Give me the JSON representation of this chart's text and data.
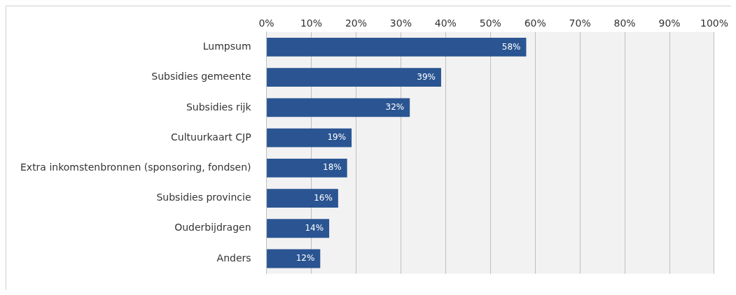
{
  "chart_data": {
    "type": "bar",
    "orientation": "horizontal",
    "categories": [
      "Lumpsum",
      "Subsidies gemeente",
      "Subsidies rijk",
      "Cultuurkaart CJP",
      "Extra inkomstenbronnen (sponsoring, fondsen)",
      "Subsidies provincie",
      "Ouderbijdragen",
      "Anders"
    ],
    "values": [
      58,
      39,
      32,
      19,
      18,
      16,
      14,
      12
    ],
    "value_labels": [
      "58%",
      "39%",
      "32%",
      "19%",
      "18%",
      "16%",
      "14%",
      "12%"
    ],
    "color": "#2a5592",
    "xlim": [
      0,
      100
    ],
    "xticks": [
      {
        "value": 0,
        "label": "0%"
      },
      {
        "value": 10,
        "label": "10%"
      },
      {
        "value": 20,
        "label": "20%"
      },
      {
        "value": 30,
        "label": "30%"
      },
      {
        "value": 40,
        "label": "40%"
      },
      {
        "value": 50,
        "label": "50%"
      },
      {
        "value": 60,
        "label": "60%"
      },
      {
        "value": 70,
        "label": "70%"
      },
      {
        "value": 80,
        "label": "80%"
      },
      {
        "value": 90,
        "label": "90%"
      },
      {
        "value": 100,
        "label": "100%"
      }
    ],
    "grid": "x",
    "legend": false
  }
}
